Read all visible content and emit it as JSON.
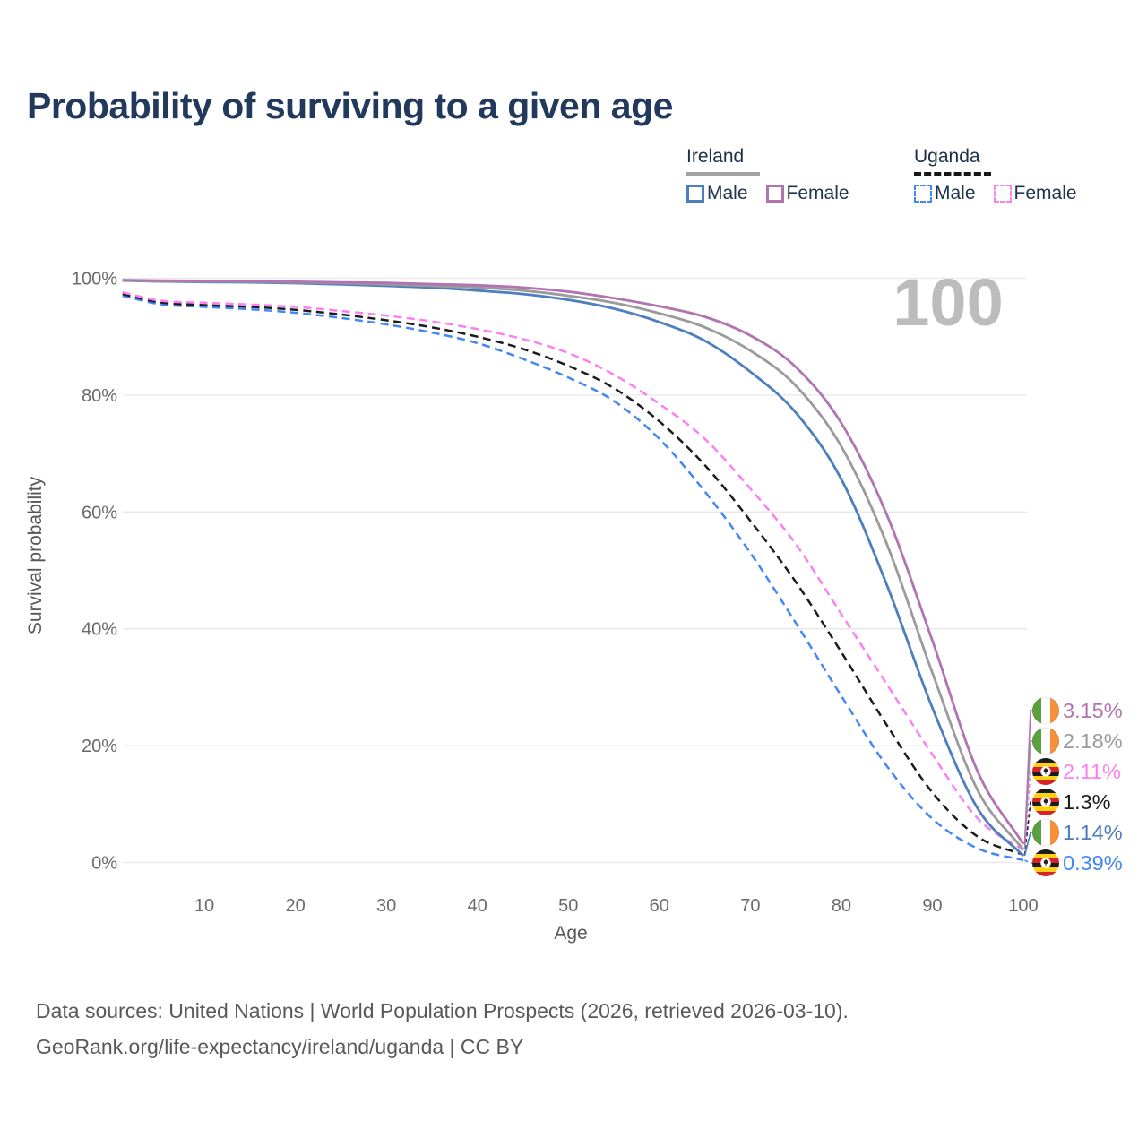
{
  "title": "Probability of surviving to a given age",
  "watermark": "100",
  "legend": {
    "groups": [
      {
        "country": "Ireland",
        "line_style": "solid",
        "underline_color": "#a3a3a3",
        "items": [
          {
            "label": "Male",
            "color": "#4d7fbe"
          },
          {
            "label": "Female",
            "color": "#b173b1"
          }
        ]
      },
      {
        "country": "Uganda",
        "line_style": "dashed",
        "underline_color": "#161616",
        "items": [
          {
            "label": "Male",
            "color": "#4287f5"
          },
          {
            "label": "Female",
            "color": "#fb80f0"
          }
        ]
      }
    ]
  },
  "axes": {
    "y_title": "Survival probability",
    "x_title": "Age",
    "y_ticks": [
      {
        "label": "100%",
        "value": 100
      },
      {
        "label": "80%",
        "value": 80
      },
      {
        "label": "60%",
        "value": 60
      },
      {
        "label": "40%",
        "value": 40
      },
      {
        "label": "20%",
        "value": 20
      },
      {
        "label": "0%",
        "value": 0
      }
    ],
    "x_ticks": [
      {
        "label": "10",
        "value": 10
      },
      {
        "label": "20",
        "value": 20
      },
      {
        "label": "30",
        "value": 30
      },
      {
        "label": "40",
        "value": 40
      },
      {
        "label": "50",
        "value": 50
      },
      {
        "label": "60",
        "value": 60
      },
      {
        "label": "70",
        "value": 70
      },
      {
        "label": "80",
        "value": 80
      },
      {
        "label": "90",
        "value": 90
      },
      {
        "label": "100",
        "value": 100
      }
    ]
  },
  "chart_data": {
    "type": "line",
    "title": "Probability of surviving to a given age",
    "xlabel": "Age",
    "ylabel": "Survival probability",
    "xlim": [
      0,
      100
    ],
    "ylim": [
      0,
      100
    ],
    "grid": "horizontal, every 20%",
    "legend_position": "top-right",
    "x": [
      1,
      5,
      10,
      15,
      20,
      25,
      30,
      35,
      40,
      45,
      50,
      55,
      60,
      65,
      70,
      75,
      80,
      85,
      90,
      95,
      100
    ],
    "series": [
      {
        "id": "uganda-male",
        "name": "Uganda Male",
        "country": "Uganda",
        "sex": "Male",
        "style": "dashed",
        "color": "#4287f5",
        "flag": "uganda",
        "end_label": "0.39%",
        "label_row": 5,
        "values": [
          97.0,
          95.6,
          95.1,
          94.7,
          94.1,
          93.2,
          92.1,
          90.7,
          88.9,
          86.2,
          83.0,
          79.0,
          72.5,
          63.5,
          53.0,
          41.0,
          28.5,
          16.5,
          7.5,
          2.4,
          0.39
        ]
      },
      {
        "id": "uganda-both",
        "name": "Uganda Both sexes",
        "country": "Uganda",
        "sex": "Both",
        "style": "dashed",
        "color": "#1c1c1c",
        "flag": "uganda",
        "end_label": "1.3%",
        "label_row": 3,
        "values": [
          97.3,
          95.9,
          95.4,
          95.1,
          94.6,
          93.8,
          92.8,
          91.6,
          90.0,
          87.9,
          85.0,
          81.2,
          75.5,
          68.0,
          58.5,
          48.0,
          36.0,
          23.5,
          12.0,
          4.4,
          1.3
        ]
      },
      {
        "id": "uganda-female",
        "name": "Uganda Female",
        "country": "Uganda",
        "sex": "Female",
        "style": "dashed",
        "color": "#fb80f0",
        "flag": "uganda",
        "end_label": "2.11%",
        "label_row": 2,
        "values": [
          97.6,
          96.2,
          95.8,
          95.5,
          95.1,
          94.4,
          93.6,
          92.6,
          91.3,
          89.6,
          87.2,
          83.5,
          78.5,
          72.5,
          64.0,
          54.5,
          42.5,
          30.5,
          18.5,
          7.5,
          2.11
        ]
      },
      {
        "id": "ireland-male",
        "name": "Ireland Male",
        "country": "Ireland",
        "sex": "Male",
        "style": "solid",
        "color": "#4d7fbe",
        "flag": "ireland",
        "end_label": "1.14%",
        "label_row": 4,
        "values": [
          99.6,
          99.45,
          99.35,
          99.3,
          99.15,
          98.95,
          98.7,
          98.4,
          97.9,
          97.3,
          96.3,
          94.8,
          92.5,
          89.3,
          84.0,
          77.0,
          65.6,
          47.5,
          26.5,
          9.2,
          1.14
        ]
      },
      {
        "id": "ireland-both",
        "name": "Ireland Both sexes",
        "country": "Ireland",
        "sex": "Both",
        "style": "solid",
        "color": "#9b9b9b",
        "flag": "ireland",
        "end_label": "2.18%",
        "label_row": 1,
        "values": [
          99.65,
          99.5,
          99.45,
          99.4,
          99.3,
          99.15,
          98.95,
          98.7,
          98.4,
          97.9,
          97.0,
          95.8,
          94.0,
          91.6,
          87.6,
          81.6,
          71.2,
          54.5,
          32.5,
          12.3,
          2.18
        ]
      },
      {
        "id": "ireland-female",
        "name": "Ireland Female",
        "country": "Ireland",
        "sex": "Female",
        "style": "solid",
        "color": "#b173b1",
        "flag": "ireland",
        "end_label": "3.15%",
        "label_row": 0,
        "values": [
          99.7,
          99.6,
          99.55,
          99.5,
          99.4,
          99.3,
          99.2,
          99.0,
          98.8,
          98.4,
          97.7,
          96.6,
          95.2,
          93.4,
          90.2,
          84.8,
          75.2,
          59.5,
          38.0,
          15.5,
          3.15
        ]
      }
    ]
  },
  "flag_colors": {
    "ireland": {
      "green": "#5aa03c",
      "white": "#ffffff",
      "orange": "#f7903a"
    },
    "uganda": {
      "black": "#1b1b1b",
      "yellow": "#fcd116",
      "red": "#d8222a"
    }
  },
  "footer": {
    "line1": "Data sources: United Nations | World Population Prospects (2026, retrieved 2026-03-10).",
    "line2": "GeoRank.org/life-expectancy/ireland/uganda | CC BY"
  }
}
